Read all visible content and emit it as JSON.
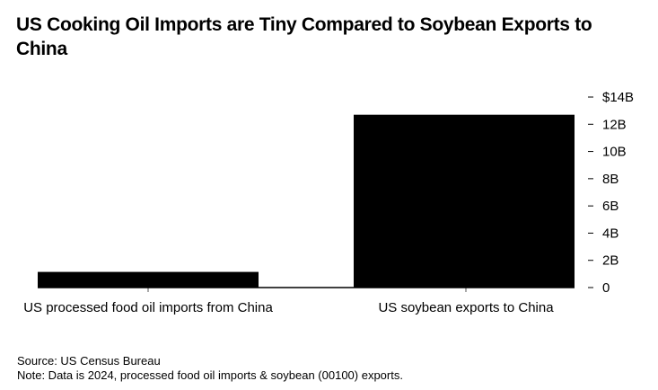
{
  "chart_data": {
    "type": "bar",
    "title": "US Cooking Oil Imports are Tiny Compared to Soybean Exports to China",
    "categories": [
      "US processed food oil imports from China",
      "US soybean exports to China"
    ],
    "values": [
      1.15,
      12.7
    ],
    "unit": "billion USD",
    "ylim": [
      0,
      14
    ],
    "yticks": [
      0,
      2,
      4,
      6,
      8,
      10,
      12,
      14
    ],
    "ytick_labels": [
      "0",
      "2B",
      "4B",
      "6B",
      "8B",
      "10B",
      "12B",
      "$14B"
    ],
    "y_axis_side": "right",
    "grid": false,
    "bar_color": "#000000"
  },
  "source": "Source: US Census Bureau",
  "note": "Note: Data is 2024, processed food oil imports & soybean (00100) exports."
}
